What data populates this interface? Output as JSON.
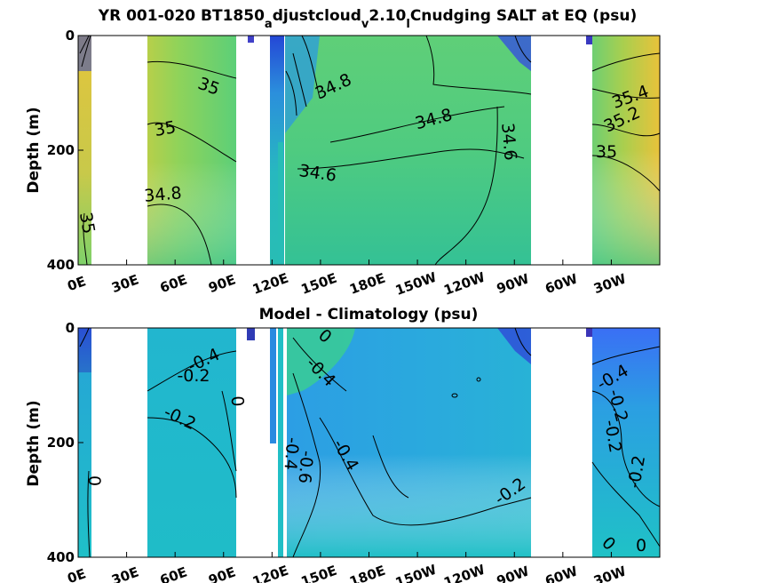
{
  "chart_data": [
    {
      "type": "heatmap",
      "title": "YR 001-020 BT1850",
      "title_parts": {
        "base": "YR 001-020 BT1850",
        "sub_a": "a",
        "mid_1": "djustcloud",
        "sub_v": "v",
        "mid_2": "2.10",
        "sub_l": "l",
        "tail": "Cnudging SALT at EQ (psu)"
      },
      "ylabel": "Depth (m)",
      "xlabel": "",
      "xticks": [
        "0E",
        "30E",
        "60E",
        "90E",
        "120E",
        "150E",
        "180E",
        "150W",
        "120W",
        "90W",
        "60W",
        "30W"
      ],
      "xlim": [
        0,
        360
      ],
      "yticks": [
        "0",
        "200",
        "400"
      ],
      "ylim": [
        0,
        400
      ],
      "y_reversed": true,
      "contour_labels": [
        "35",
        "35",
        "34.8",
        "35",
        "34.8",
        "34.8",
        "34.6",
        "34.6",
        "35.4",
        "35.2",
        "35"
      ],
      "colors": {
        "low": "#3b3bc9",
        "mid": "#1fb3b8",
        "base": "#5ecf7a",
        "high": "#f2c43b"
      }
    },
    {
      "type": "heatmap",
      "title": "Model - Climatology (psu)",
      "ylabel": "Depth (m)",
      "xlabel": "",
      "xticks": [
        "0E",
        "30E",
        "60E",
        "90E",
        "120E",
        "150E",
        "180E",
        "150W",
        "120W",
        "90W",
        "60W",
        "30W"
      ],
      "xlim": [
        0,
        360
      ],
      "yticks": [
        "0",
        "200",
        "400"
      ],
      "ylim": [
        0,
        400
      ],
      "y_reversed": true,
      "contour_labels": [
        "-0.4",
        "-0.2",
        "0",
        "-0.2",
        "0",
        "0",
        "-0.4",
        "-0.4",
        "-0.6",
        "-0.4",
        "-0.2",
        "-0.4",
        "-0.2",
        "-0.2",
        "-0.2",
        "0",
        "0"
      ],
      "colors": {
        "low": "#3a6ff5",
        "mid": "#1fc0c8",
        "base": "#2ca7dd",
        "high": "#3bcf88"
      }
    }
  ]
}
